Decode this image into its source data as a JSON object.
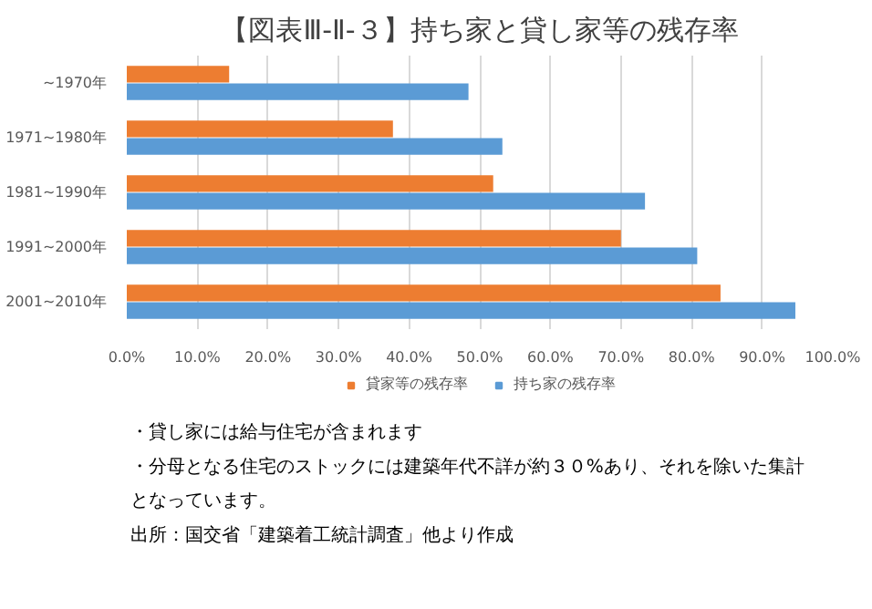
{
  "chart_data": {
    "type": "bar",
    "orientation": "horizontal",
    "title": "【図表Ⅲ-Ⅱ-３】持ち家と貸し家等の残存率",
    "categories": [
      "~1970年",
      "1971~1980年",
      "1981~1990年",
      "1991~2000年",
      "2001~2010年"
    ],
    "series": [
      {
        "name": "貸家等の残存率",
        "color": "#ed7d31",
        "values": [
          14.5,
          37.7,
          51.9,
          70.0,
          84.1
        ]
      },
      {
        "name": "持ち家の残存率",
        "color": "#5b9bd5",
        "values": [
          48.4,
          53.2,
          73.4,
          80.8,
          94.7
        ]
      }
    ],
    "xlim": [
      0,
      100
    ],
    "xticks": [
      {
        "value": 0,
        "label": "0.0%"
      },
      {
        "value": 10,
        "label": "10.0%"
      },
      {
        "value": 20,
        "label": "20.0%"
      },
      {
        "value": 30,
        "label": "30.0%"
      },
      {
        "value": 40,
        "label": "40.0%"
      },
      {
        "value": 50,
        "label": "50.0%"
      },
      {
        "value": 60,
        "label": "60.0%"
      },
      {
        "value": 70,
        "label": "70.0%"
      },
      {
        "value": 80,
        "label": "80.0%"
      },
      {
        "value": 90,
        "label": "90.0%"
      },
      {
        "value": 100,
        "label": "100.0%"
      }
    ],
    "grid": "x",
    "legend": "bottom",
    "annotations": [
      "・貸し家には給与住宅が含まれます",
      "・分母となる住宅のストックには建築年代不詳が約３０%あり、それを除いた集計",
      "となっています。",
      "出所：国交省「建築着工統計調査」他より作成"
    ]
  }
}
